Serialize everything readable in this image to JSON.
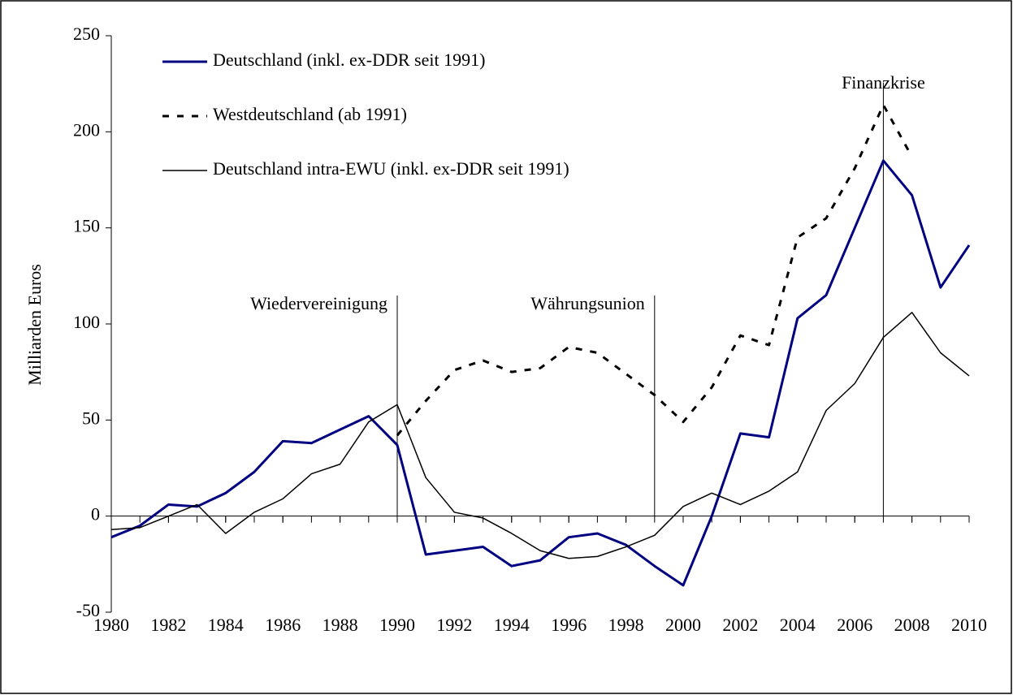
{
  "chart_data": {
    "type": "line",
    "y_label": "Milliarden Euros",
    "x": [
      1980,
      1981,
      1982,
      1983,
      1984,
      1985,
      1986,
      1987,
      1988,
      1989,
      1990,
      1991,
      1992,
      1993,
      1994,
      1995,
      1996,
      1997,
      1998,
      1999,
      2000,
      2001,
      2002,
      2003,
      2004,
      2005,
      2006,
      2007,
      2008,
      2009,
      2010
    ],
    "series": [
      {
        "name": "Deutschland (inkl. ex-DDR seit 1991)",
        "color": "#000080",
        "line_style": "solid",
        "line_width": 3,
        "values": [
          -11,
          -5,
          6,
          5,
          12,
          23,
          39,
          38,
          45,
          52,
          37,
          -20,
          -18,
          -16,
          -26,
          -23,
          -11,
          -9,
          -15,
          -26,
          -36,
          0,
          43,
          41,
          103,
          115,
          150,
          185,
          167,
          119,
          141
        ]
      },
      {
        "name": "Westdeutschland (ab 1991)",
        "color": "#000000",
        "line_style": "dashed",
        "line_width": 3,
        "values": [
          null,
          null,
          null,
          null,
          null,
          null,
          null,
          null,
          null,
          null,
          42,
          60,
          76,
          81,
          75,
          77,
          88,
          85,
          74,
          63,
          49,
          67,
          94,
          89,
          145,
          155,
          181,
          214,
          187,
          null,
          null
        ]
      },
      {
        "name": "Deutschland intra-EWU (inkl. ex-DDR seit 1991)",
        "color": "#000000",
        "line_style": "solid",
        "line_width": 1.5,
        "values": [
          -7,
          -6,
          0,
          6,
          -9,
          2,
          9,
          22,
          27,
          49,
          58,
          20,
          2,
          -1,
          -9,
          -18,
          -22,
          -21,
          -16,
          -10,
          5,
          12,
          6,
          13,
          23,
          55,
          69,
          93,
          106,
          85,
          73
        ]
      }
    ],
    "annotations": [
      {
        "label": "Wiedervereinigung",
        "x": 1990
      },
      {
        "label": "Währungsunion",
        "x": 1999
      },
      {
        "label": "Finanzkrise",
        "x": 2007
      }
    ],
    "xlim": [
      1980,
      2010
    ],
    "xticks": [
      1980,
      1982,
      1984,
      1986,
      1988,
      1990,
      1992,
      1994,
      1996,
      1998,
      2000,
      2002,
      2004,
      2006,
      2008,
      2010
    ],
    "ylim": [
      -50,
      250
    ],
    "yticks": [
      -50,
      0,
      50,
      100,
      150,
      200,
      250
    ],
    "legend": "top-left"
  }
}
